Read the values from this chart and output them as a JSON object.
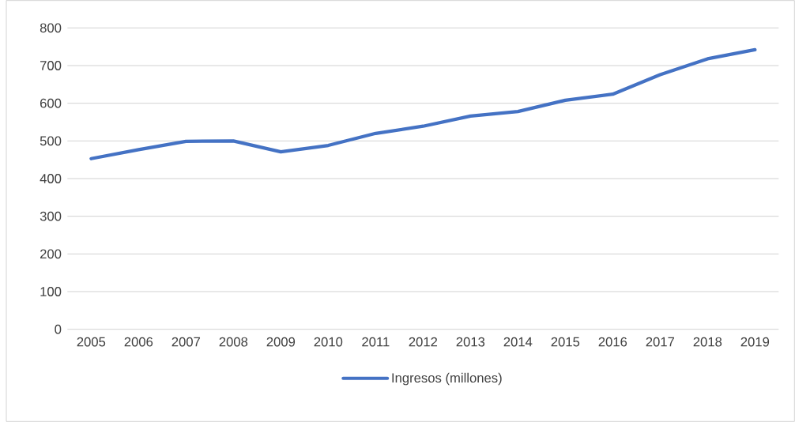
{
  "chart_data": {
    "type": "line",
    "categories": [
      "2005",
      "2006",
      "2007",
      "2008",
      "2009",
      "2010",
      "2011",
      "2012",
      "2013",
      "2014",
      "2015",
      "2016",
      "2017",
      "2018",
      "2019"
    ],
    "series": [
      {
        "name": "Ingresos (millones)",
        "color": "#4472c4",
        "values": [
          453,
          477,
          499,
          500,
          471,
          488,
          520,
          539,
          566,
          578,
          608,
          624,
          676,
          718,
          742
        ]
      }
    ],
    "ylim": [
      0,
      800
    ],
    "yticks": [
      0,
      100,
      200,
      300,
      400,
      500,
      600,
      700,
      800
    ],
    "grid": "y",
    "legend": "bottom",
    "marker": "none",
    "line_style": "solid"
  }
}
